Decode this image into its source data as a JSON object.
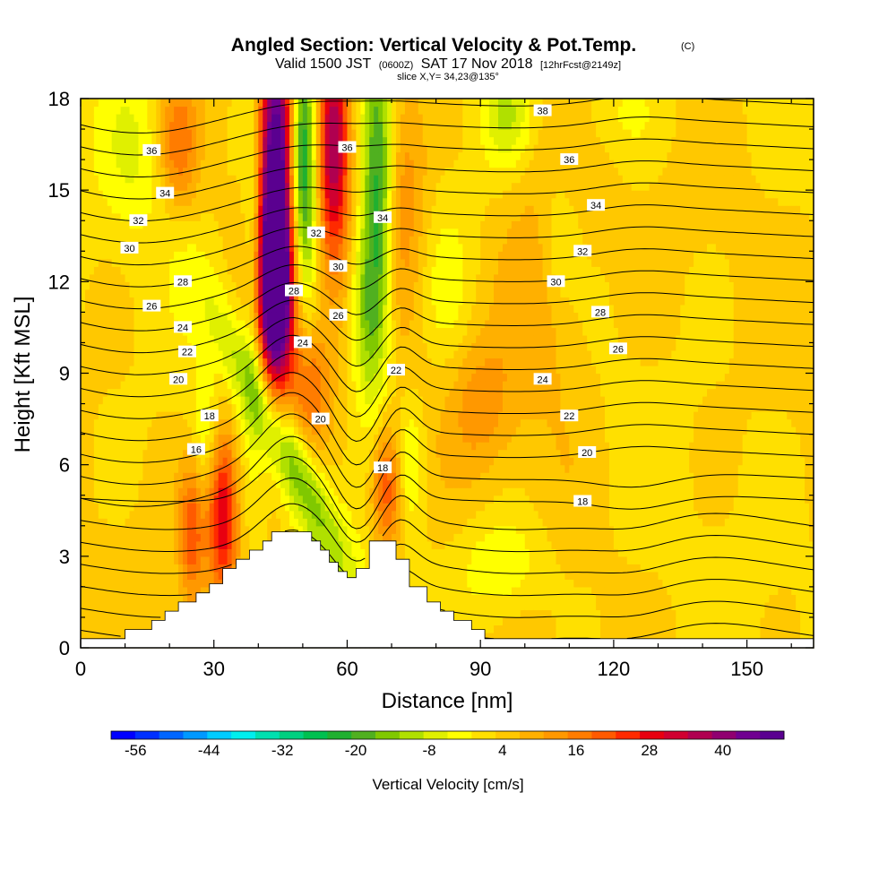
{
  "chart_data": {
    "type": "heatmap",
    "title": "Angled Section: Vertical Velocity & Pot.Temp.",
    "copyright": "(C)",
    "subtitle_parts": [
      "Valid 1500 JST",
      "(0600Z)",
      "SAT 17 Nov 2018",
      "[12hrFcst@2149z]"
    ],
    "slice_info": "slice X,Y= 34,23@135°",
    "xlabel": "Distance [nm]",
    "ylabel": "Height [Kft MSL]",
    "xlim": [
      0,
      165
    ],
    "ylim": [
      0,
      18
    ],
    "xticks": [
      0,
      30,
      60,
      90,
      120,
      150
    ],
    "yticks": [
      0,
      3,
      6,
      9,
      12,
      15,
      18
    ],
    "colorbar": {
      "title": "Vertical Velocity [cm/s]",
      "min": -60,
      "max": 50,
      "step": 4,
      "tick_labels": [
        "-56",
        "-44",
        "-32",
        "-20",
        "-8",
        "4",
        "16",
        "28",
        "40"
      ],
      "colors": [
        "#0000ff",
        "#0030ff",
        "#0066ff",
        "#0099ff",
        "#00ccff",
        "#00eeee",
        "#00e0b0",
        "#00d080",
        "#00c050",
        "#20b030",
        "#50b020",
        "#80c800",
        "#b0e000",
        "#e0f000",
        "#ffff00",
        "#ffe000",
        "#ffc800",
        "#ffb000",
        "#ff9800",
        "#ff7c00",
        "#ff5a00",
        "#ff2a00",
        "#e80010",
        "#d00030",
        "#b00050",
        "#900070",
        "#700090",
        "#5a0090"
      ]
    },
    "terrain": [
      [
        0,
        0.3
      ],
      [
        10,
        0.3
      ],
      [
        10,
        0.6
      ],
      [
        16,
        0.6
      ],
      [
        16,
        0.9
      ],
      [
        19,
        0.9
      ],
      [
        19,
        1.2
      ],
      [
        22,
        1.2
      ],
      [
        22,
        1.5
      ],
      [
        26,
        1.5
      ],
      [
        26,
        1.8
      ],
      [
        29,
        1.8
      ],
      [
        29,
        2.1
      ],
      [
        32,
        2.1
      ],
      [
        32,
        2.6
      ],
      [
        35,
        2.6
      ],
      [
        35,
        2.9
      ],
      [
        38,
        2.9
      ],
      [
        38,
        3.2
      ],
      [
        41,
        3.2
      ],
      [
        41,
        3.5
      ],
      [
        43,
        3.5
      ],
      [
        43,
        3.8
      ],
      [
        52,
        3.8
      ],
      [
        52,
        3.5
      ],
      [
        54,
        3.5
      ],
      [
        54,
        3.2
      ],
      [
        56,
        3.2
      ],
      [
        56,
        2.8
      ],
      [
        58,
        2.8
      ],
      [
        58,
        2.5
      ],
      [
        60,
        2.5
      ],
      [
        60,
        2.3
      ],
      [
        62,
        2.3
      ],
      [
        62,
        2.6
      ],
      [
        65,
        2.6
      ],
      [
        65,
        3.5
      ],
      [
        71,
        3.5
      ],
      [
        71,
        2.9
      ],
      [
        74,
        2.9
      ],
      [
        74,
        2.0
      ],
      [
        78,
        2.0
      ],
      [
        78,
        1.5
      ],
      [
        81,
        1.5
      ],
      [
        81,
        1.2
      ],
      [
        84,
        1.2
      ],
      [
        84,
        0.9
      ],
      [
        88,
        0.9
      ],
      [
        88,
        0.6
      ],
      [
        91,
        0.6
      ],
      [
        91,
        0.3
      ],
      [
        165,
        0.3
      ]
    ],
    "updrafts": [
      {
        "x": 44,
        "y": 15,
        "sx": 3,
        "sy": 4.5,
        "w": 52
      },
      {
        "x": 44,
        "y": 11.5,
        "sx": 3,
        "sy": 2,
        "w": 30
      },
      {
        "x": 57,
        "y": 16.5,
        "sx": 2.5,
        "sy": 3,
        "w": 34
      },
      {
        "x": 32,
        "y": 4.5,
        "sx": 2.5,
        "sy": 2,
        "w": 30
      },
      {
        "x": 69,
        "y": 5.3,
        "sx": 2.5,
        "sy": 1.5,
        "w": 22
      },
      {
        "x": 25,
        "y": 3.8,
        "sx": 2,
        "sy": 1.8,
        "w": 18
      },
      {
        "x": 52,
        "y": 8.5,
        "sx": 3,
        "sy": 1.5,
        "w": 16
      },
      {
        "x": 22,
        "y": 16.5,
        "sx": 3,
        "sy": 1.5,
        "w": 14
      },
      {
        "x": 72,
        "y": 15,
        "sx": 4,
        "sy": 3,
        "w": 12
      },
      {
        "x": 104,
        "y": 12,
        "sx": 8,
        "sy": 4,
        "w": 8
      },
      {
        "x": 90,
        "y": 8,
        "sx": 5,
        "sy": 1.5,
        "w": 9
      }
    ],
    "downdrafts": [
      {
        "x": 50,
        "y": 16,
        "sx": 2.2,
        "sy": 3,
        "w": -36
      },
      {
        "x": 46,
        "y": 6.5,
        "sx": 4,
        "sy": 3.2,
        "w": -22,
        "tilt": 3.2
      },
      {
        "x": 39,
        "y": 14,
        "sx": 1.5,
        "sy": 4,
        "w": -14
      },
      {
        "x": 67,
        "y": 14.5,
        "sx": 2.5,
        "sy": 4,
        "w": -28
      },
      {
        "x": 64,
        "y": 11,
        "sx": 2.5,
        "sy": 2,
        "w": -14
      },
      {
        "x": 74,
        "y": 6,
        "sx": 2.5,
        "sy": 1.5,
        "w": -10
      },
      {
        "x": 28,
        "y": 6.8,
        "sx": 2.5,
        "sy": 1.5,
        "w": -10
      },
      {
        "x": 95,
        "y": 2.7,
        "sx": 7,
        "sy": 1.2,
        "w": -9
      },
      {
        "x": 96,
        "y": 17.5,
        "sx": 4,
        "sy": 1.2,
        "w": -12
      },
      {
        "x": 108,
        "y": 13.5,
        "sx": 3,
        "sy": 1.5,
        "w": -8
      },
      {
        "x": 12,
        "y": 16.5,
        "sx": 5,
        "sy": 2,
        "w": -7
      },
      {
        "x": 120,
        "y": 17.5,
        "sx": 8,
        "sy": 1,
        "w": -5
      },
      {
        "x": 82,
        "y": 12,
        "sx": 4,
        "sy": 2,
        "w": -5
      }
    ],
    "contour_levels": [
      12,
      13,
      14,
      15,
      16,
      17,
      18,
      19,
      20,
      21,
      22,
      23,
      24,
      25,
      26,
      27,
      28,
      29,
      30,
      31,
      32,
      33,
      34,
      35,
      36,
      37,
      38
    ],
    "contour_labels": [
      {
        "text": "38",
        "x": 104,
        "y": 17.6
      },
      {
        "text": "36",
        "x": 16,
        "y": 16.3
      },
      {
        "text": "36",
        "x": 60,
        "y": 16.4
      },
      {
        "text": "36",
        "x": 110,
        "y": 16.0
      },
      {
        "text": "34",
        "x": 19,
        "y": 14.9
      },
      {
        "text": "34",
        "x": 68,
        "y": 14.1
      },
      {
        "text": "34",
        "x": 116,
        "y": 14.5
      },
      {
        "text": "32",
        "x": 13,
        "y": 14.0
      },
      {
        "text": "32",
        "x": 53,
        "y": 13.6
      },
      {
        "text": "32",
        "x": 113,
        "y": 13.0
      },
      {
        "text": "30",
        "x": 11,
        "y": 13.1
      },
      {
        "text": "30",
        "x": 58,
        "y": 12.5
      },
      {
        "text": "30",
        "x": 107,
        "y": 12.0
      },
      {
        "text": "28",
        "x": 23,
        "y": 12.0
      },
      {
        "text": "28",
        "x": 48,
        "y": 11.7
      },
      {
        "text": "28",
        "x": 117,
        "y": 11.0
      },
      {
        "text": "26",
        "x": 16,
        "y": 11.2
      },
      {
        "text": "26",
        "x": 58,
        "y": 10.9
      },
      {
        "text": "26",
        "x": 121,
        "y": 9.8
      },
      {
        "text": "24",
        "x": 23,
        "y": 10.5
      },
      {
        "text": "24",
        "x": 50,
        "y": 10.0
      },
      {
        "text": "24",
        "x": 104,
        "y": 8.8
      },
      {
        "text": "22",
        "x": 24,
        "y": 9.7
      },
      {
        "text": "22",
        "x": 71,
        "y": 9.1
      },
      {
        "text": "22",
        "x": 110,
        "y": 7.6
      },
      {
        "text": "20",
        "x": 22,
        "y": 8.8
      },
      {
        "text": "20",
        "x": 54,
        "y": 7.5
      },
      {
        "text": "20",
        "x": 114,
        "y": 6.4
      },
      {
        "text": "18",
        "x": 29,
        "y": 7.6
      },
      {
        "text": "18",
        "x": 68,
        "y": 5.9
      },
      {
        "text": "18",
        "x": 113,
        "y": 4.8
      },
      {
        "text": "16",
        "x": 26,
        "y": 6.5
      }
    ]
  }
}
